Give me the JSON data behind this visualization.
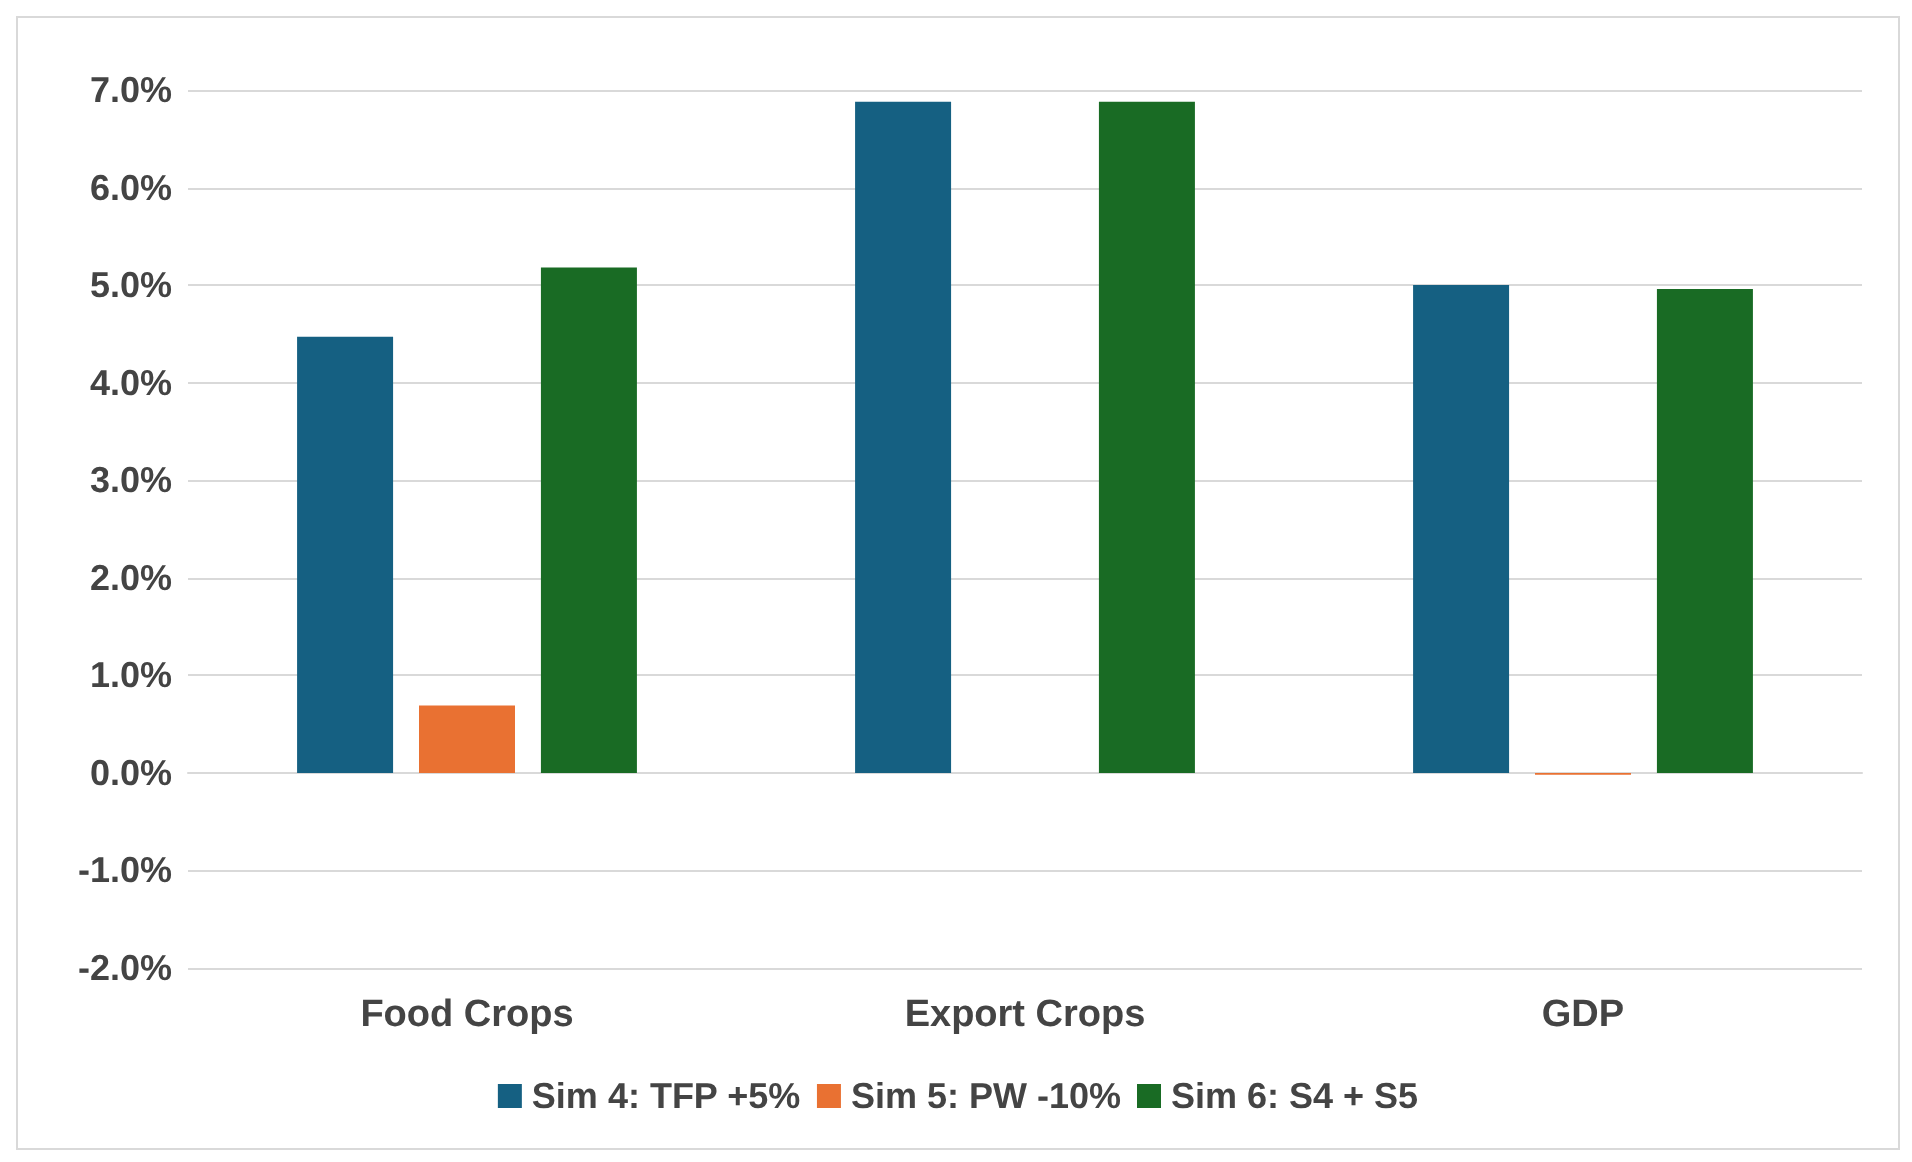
{
  "chart_data": {
    "type": "bar",
    "categories": [
      "Food Crops",
      "Export Crops",
      "GDP"
    ],
    "series": [
      {
        "name": "Sim 4: TFP +5%",
        "color": "#156082",
        "values": [
          4.47,
          6.88,
          5.0
        ]
      },
      {
        "name": "Sim 5: PW -10%",
        "color": "#e97132",
        "values": [
          0.69,
          0,
          -0.02
        ]
      },
      {
        "name": "Sim 6: S4 + S5",
        "color": "#196b24",
        "values": [
          5.18,
          6.88,
          4.96
        ]
      }
    ],
    "ylim": [
      -2,
      7
    ],
    "yticks": [
      {
        "value": -2,
        "label": "-2.0%"
      },
      {
        "value": -1,
        "label": "-1.0%"
      },
      {
        "value": 0,
        "label": "0.0%"
      },
      {
        "value": 1,
        "label": "1.0%"
      },
      {
        "value": 2,
        "label": "2.0%"
      },
      {
        "value": 3,
        "label": "3.0%"
      },
      {
        "value": 4,
        "label": "4.0%"
      },
      {
        "value": 5,
        "label": "5.0%"
      },
      {
        "value": 6,
        "label": "6.0%"
      },
      {
        "value": 7,
        "label": "7.0%"
      }
    ],
    "grid": "y",
    "legend": "bottom"
  }
}
